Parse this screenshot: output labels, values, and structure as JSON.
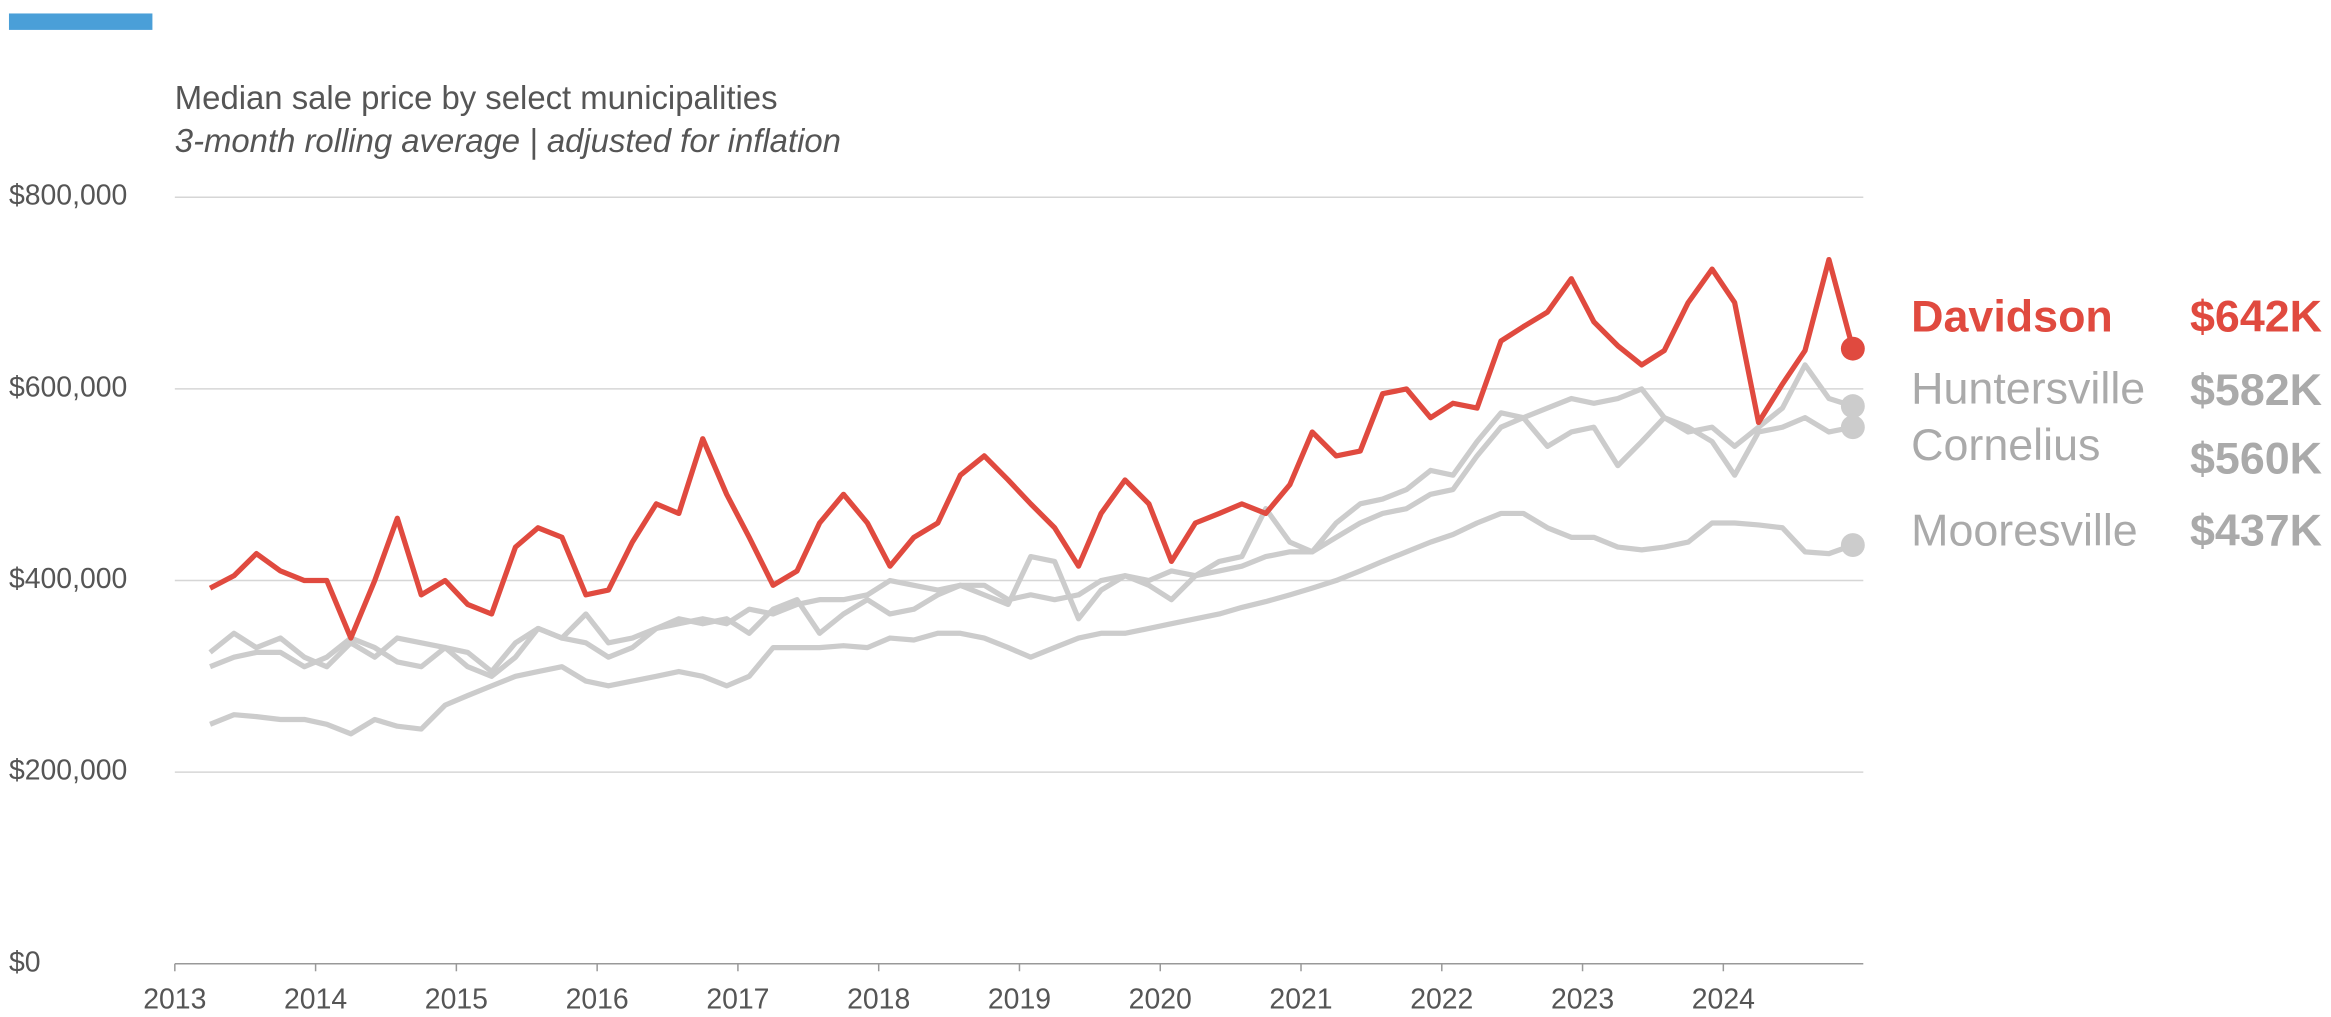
{
  "chart_data": {
    "type": "line",
    "title": "Median sale price by select municipalities",
    "subtitle": "3-month rolling average | adjusted for inflation",
    "x": [
      2013.25,
      2013.42,
      2013.58,
      2013.75,
      2013.92,
      2014.08,
      2014.25,
      2014.42,
      2014.58,
      2014.75,
      2014.92,
      2015.08,
      2015.25,
      2015.42,
      2015.58,
      2015.75,
      2015.92,
      2016.08,
      2016.25,
      2016.42,
      2016.58,
      2016.75,
      2016.92,
      2017.08,
      2017.25,
      2017.42,
      2017.58,
      2017.75,
      2017.92,
      2018.08,
      2018.25,
      2018.42,
      2018.58,
      2018.75,
      2018.92,
      2019.08,
      2019.25,
      2019.42,
      2019.58,
      2019.75,
      2019.92,
      2020.08,
      2020.25,
      2020.42,
      2020.58,
      2020.75,
      2020.92,
      2021.08,
      2021.25,
      2021.42,
      2021.58,
      2021.75,
      2021.92,
      2022.08,
      2022.25,
      2022.42,
      2022.58,
      2022.75,
      2022.92,
      2023.08,
      2023.25,
      2023.42,
      2023.58,
      2023.75,
      2023.92,
      2024.08,
      2024.25,
      2024.42,
      2024.58,
      2024.75,
      2024.92
    ],
    "series": [
      {
        "name": "Davidson",
        "color": "#e04a3f",
        "label": "$642K",
        "values": [
          392000,
          405000,
          428000,
          410000,
          400000,
          400000,
          340000,
          400000,
          465000,
          385000,
          400000,
          375000,
          365000,
          435000,
          455000,
          445000,
          385000,
          390000,
          440000,
          480000,
          470000,
          548000,
          490000,
          445000,
          395000,
          410000,
          460000,
          490000,
          460000,
          415000,
          445000,
          460000,
          510000,
          530000,
          505000,
          480000,
          455000,
          415000,
          470000,
          505000,
          480000,
          420000,
          460000,
          470000,
          480000,
          470000,
          500000,
          555000,
          530000,
          535000,
          595000,
          600000,
          570000,
          585000,
          580000,
          650000,
          665000,
          680000,
          715000,
          670000,
          645000,
          625000,
          640000,
          690000,
          725000,
          690000,
          565000,
          605000,
          640000,
          735000,
          642000
        ]
      },
      {
        "name": "Huntersville",
        "color": "#cccccc",
        "label": "$582K",
        "values": [
          325000,
          345000,
          330000,
          340000,
          320000,
          310000,
          335000,
          320000,
          340000,
          335000,
          330000,
          325000,
          305000,
          335000,
          350000,
          340000,
          365000,
          335000,
          340000,
          350000,
          360000,
          355000,
          360000,
          345000,
          370000,
          380000,
          345000,
          365000,
          380000,
          365000,
          370000,
          385000,
          395000,
          385000,
          375000,
          425000,
          420000,
          360000,
          390000,
          405000,
          395000,
          380000,
          405000,
          420000,
          425000,
          475000,
          440000,
          430000,
          460000,
          480000,
          485000,
          495000,
          515000,
          510000,
          545000,
          575000,
          570000,
          580000,
          590000,
          585000,
          590000,
          600000,
          570000,
          555000,
          560000,
          540000,
          560000,
          580000,
          625000,
          590000,
          582000
        ]
      },
      {
        "name": "Cornelius",
        "color": "#cccccc",
        "label": "$560K",
        "values": [
          310000,
          320000,
          325000,
          325000,
          310000,
          320000,
          340000,
          330000,
          315000,
          310000,
          330000,
          310000,
          300000,
          320000,
          350000,
          340000,
          335000,
          320000,
          330000,
          350000,
          355000,
          360000,
          355000,
          370000,
          365000,
          375000,
          380000,
          380000,
          385000,
          400000,
          395000,
          390000,
          395000,
          395000,
          380000,
          385000,
          380000,
          385000,
          400000,
          405000,
          400000,
          410000,
          405000,
          410000,
          415000,
          425000,
          430000,
          430000,
          445000,
          460000,
          470000,
          475000,
          490000,
          495000,
          530000,
          560000,
          570000,
          540000,
          555000,
          560000,
          520000,
          545000,
          570000,
          560000,
          545000,
          510000,
          555000,
          560000,
          570000,
          555000,
          560000
        ]
      },
      {
        "name": "Mooresville",
        "color": "#cccccc",
        "label": "$437K",
        "values": [
          250000,
          260000,
          258000,
          255000,
          255000,
          250000,
          240000,
          255000,
          248000,
          245000,
          270000,
          280000,
          290000,
          300000,
          305000,
          310000,
          295000,
          290000,
          295000,
          300000,
          305000,
          300000,
          290000,
          300000,
          330000,
          330000,
          330000,
          332000,
          330000,
          340000,
          338000,
          345000,
          345000,
          340000,
          330000,
          320000,
          330000,
          340000,
          345000,
          345000,
          350000,
          355000,
          360000,
          365000,
          372000,
          378000,
          385000,
          392000,
          400000,
          410000,
          420000,
          430000,
          440000,
          448000,
          460000,
          470000,
          470000,
          455000,
          445000,
          445000,
          435000,
          432000,
          435000,
          440000,
          460000,
          460000,
          458000,
          455000,
          430000,
          428000,
          437000
        ]
      }
    ],
    "xlim": [
      2013,
      2024.92
    ],
    "xticks": [
      2013,
      2014,
      2015,
      2016,
      2017,
      2018,
      2019,
      2020,
      2021,
      2022,
      2023,
      2024
    ],
    "ylim": [
      0,
      800000
    ],
    "yticks": [
      {
        "value": 0,
        "label": "$0"
      },
      {
        "value": 200000,
        "label": "$200,000"
      },
      {
        "value": 400000,
        "label": "$400,000"
      },
      {
        "value": 600000,
        "label": "$600,000"
      },
      {
        "value": 800000,
        "label": "$800,000"
      }
    ],
    "grid": true
  }
}
